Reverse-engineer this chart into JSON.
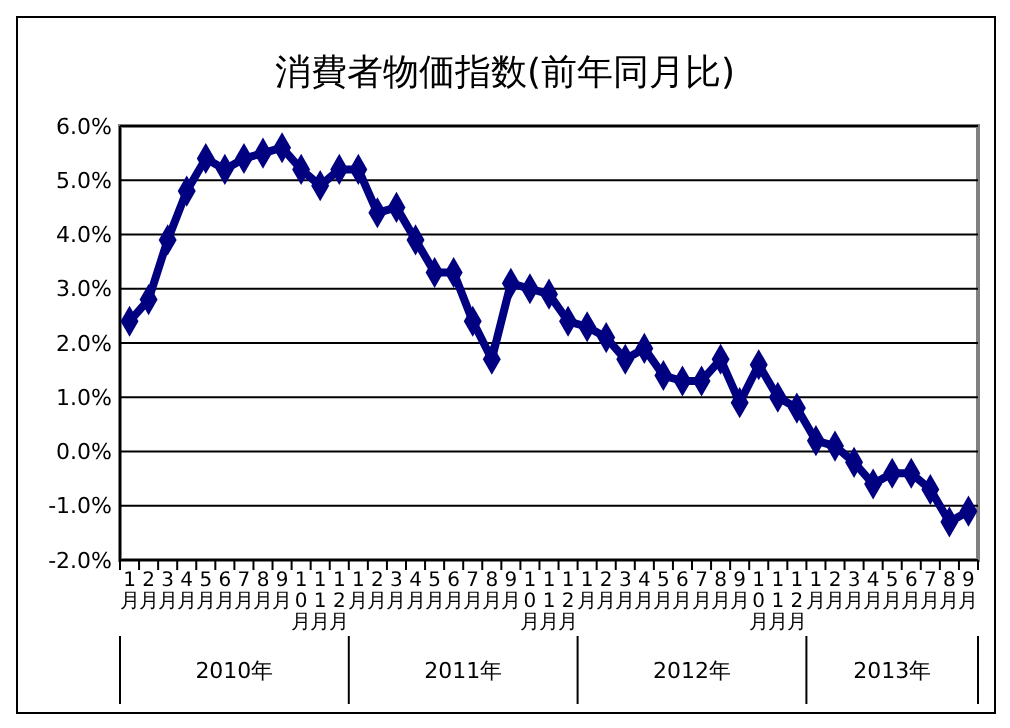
{
  "chart_data": {
    "type": "line",
    "title": "消費者物価指数(前年同月比)",
    "categories": [
      "1月",
      "2月",
      "3月",
      "4月",
      "5月",
      "6月",
      "7月",
      "8月",
      "9月",
      "10月",
      "11月",
      "12月",
      "1月",
      "2月",
      "3月",
      "4月",
      "5月",
      "6月",
      "7月",
      "8月",
      "9月",
      "10月",
      "11月",
      "12月",
      "1月",
      "2月",
      "3月",
      "4月",
      "5月",
      "6月",
      "7月",
      "8月",
      "9月",
      "10月",
      "11月",
      "12月",
      "1月",
      "2月",
      "3月",
      "4月",
      "5月",
      "6月",
      "7月",
      "8月",
      "9月"
    ],
    "series": [
      {
        "color": "#000080",
        "values": [
          2.4,
          2.8,
          3.9,
          4.8,
          5.4,
          5.2,
          5.4,
          5.5,
          5.6,
          5.2,
          4.9,
          5.2,
          5.2,
          4.4,
          4.5,
          3.9,
          3.3,
          3.3,
          2.4,
          1.7,
          3.1,
          3.0,
          2.9,
          2.4,
          2.3,
          2.1,
          1.7,
          1.9,
          1.4,
          1.3,
          1.3,
          1.7,
          0.9,
          1.6,
          1.0,
          0.8,
          0.2,
          0.1,
          -0.2,
          -0.6,
          -0.4,
          -0.4,
          -0.7,
          -1.3,
          -1.1
        ]
      }
    ],
    "annotations": [
      "2010年",
      "2011年",
      "2012年",
      "2013年"
    ],
    "ylim": [
      -2,
      6
    ],
    "yticks": [
      {
        "value": -2,
        "label": "-2.0%"
      },
      {
        "value": -1,
        "label": "-1.0%"
      },
      {
        "value": 0,
        "label": "0.0%"
      },
      {
        "value": 1,
        "label": "1.0%"
      },
      {
        "value": 2,
        "label": "2.0%"
      },
      {
        "value": 3,
        "label": "3.0%"
      },
      {
        "value": 4,
        "label": "4.0%"
      },
      {
        "value": 5,
        "label": "5.0%"
      },
      {
        "value": 6,
        "label": "6.0%"
      }
    ],
    "grid": "y",
    "marker": "diamond",
    "line_style": "solid"
  }
}
